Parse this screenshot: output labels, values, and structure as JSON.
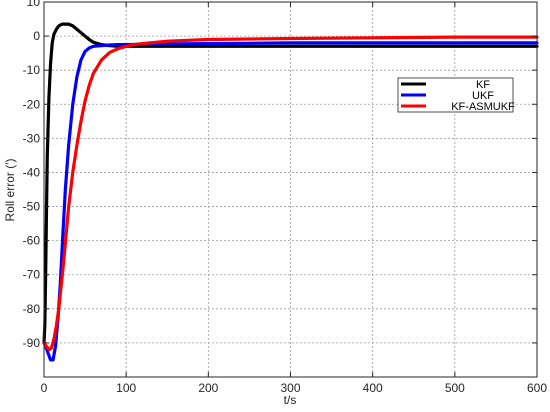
{
  "chart_data": {
    "type": "line",
    "title": "",
    "xlabel": "t/s",
    "ylabel": "Roll error (′)",
    "xlim": [
      0,
      600
    ],
    "ylim": [
      -100,
      10
    ],
    "xticks": [
      0,
      100,
      200,
      300,
      400,
      500,
      600
    ],
    "yticks": [
      10,
      0,
      -10,
      -20,
      -30,
      -40,
      -50,
      -60,
      -70,
      -80,
      -90
    ],
    "grid": true,
    "legend_position": "top-right",
    "series": [
      {
        "name": "KF",
        "color": "#000000",
        "x": [
          0,
          1,
          2,
          3,
          4,
          6,
          8,
          10,
          12,
          15,
          18,
          22,
          26,
          30,
          35,
          40,
          45,
          50,
          55,
          60,
          70,
          80,
          90,
          100,
          120,
          150,
          200,
          300,
          400,
          500,
          600
        ],
        "y": [
          -90,
          -85,
          -70,
          -52,
          -35,
          -18,
          -8,
          -2,
          0.5,
          2,
          3,
          3.5,
          3.5,
          3.5,
          3,
          2,
          1,
          0,
          -1,
          -1.8,
          -2.5,
          -2.8,
          -3,
          -3,
          -3,
          -3,
          -3,
          -3,
          -3,
          -3,
          -3
        ]
      },
      {
        "name": "UKF",
        "color": "#0000ff",
        "x": [
          0,
          2,
          5,
          8,
          11,
          14,
          17,
          20,
          23,
          26,
          30,
          35,
          40,
          45,
          50,
          55,
          60,
          70,
          80,
          90,
          100,
          120,
          150,
          200,
          300,
          400,
          500,
          600
        ],
        "y": [
          -90,
          -91,
          -93,
          -95,
          -95,
          -91,
          -83,
          -72,
          -58,
          -45,
          -32,
          -20,
          -12,
          -7,
          -4.5,
          -3.5,
          -3,
          -2.8,
          -2.6,
          -2.5,
          -2.5,
          -2.4,
          -2.3,
          -2.2,
          -2,
          -2,
          -2,
          -2
        ]
      },
      {
        "name": "KF-ASMUKF",
        "color": "#ff0000",
        "x": [
          0,
          3,
          6,
          9,
          12,
          15,
          18,
          21,
          24,
          27,
          30,
          35,
          40,
          45,
          50,
          55,
          60,
          70,
          80,
          90,
          100,
          110,
          120,
          150,
          200,
          300,
          400,
          500,
          600
        ],
        "y": [
          -90,
          -91,
          -92,
          -91.5,
          -89,
          -85,
          -80,
          -73,
          -66,
          -58,
          -50,
          -40,
          -32,
          -25,
          -19,
          -14.5,
          -11,
          -7,
          -4.8,
          -3.7,
          -3,
          -2.5,
          -2.2,
          -1.5,
          -1,
          -0.7,
          -0.5,
          -0.3,
          -0.3
        ]
      }
    ]
  }
}
